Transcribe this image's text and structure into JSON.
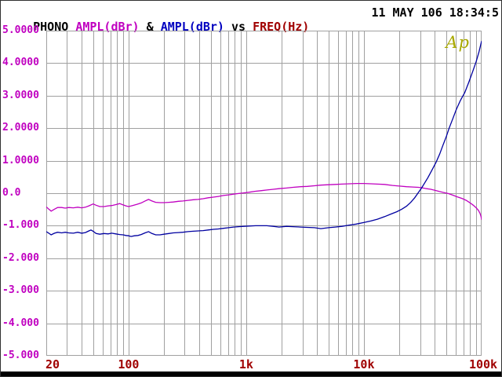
{
  "colors": {
    "background": "#ffffff",
    "grid": "#a0a0a0",
    "frame": "#a0a0a0",
    "series1": "#c000c0",
    "series2": "#0000a0",
    "y_label": "#c000c0",
    "x_label": "#a00000",
    "logo": "#a8a800",
    "black": "#000000"
  },
  "header": {
    "title_parts": [
      {
        "text": "PHONO ",
        "color": "#000000"
      },
      {
        "text": "AMPL(dBr)",
        "color": "#c000c0"
      },
      {
        "text": " & ",
        "color": "#000000"
      },
      {
        "text": "AMPL(dBr)",
        "color": "#0000c0"
      },
      {
        "text": " vs ",
        "color": "#000000"
      },
      {
        "text": "FREQ(Hz)",
        "color": "#a00000"
      }
    ],
    "timestamp": "11 MAY 106 18:34:5"
  },
  "chart_data": {
    "type": "line",
    "title": "PHONO AMPL(dBr) & AMPL(dBr) vs FREQ(Hz)",
    "xlabel": "FREQ(Hz)",
    "ylabel": "AMPL(dBr)",
    "grid": true,
    "legend_position": "none",
    "logo": "Ap",
    "x_axis": {
      "scale": "log",
      "min": 20,
      "max": 100000,
      "ticks": [
        {
          "label": "20",
          "value": 20,
          "dx": 8
        },
        {
          "label": "100",
          "value": 100,
          "dx": 0
        },
        {
          "label": "1k",
          "value": 1000,
          "dx": 0
        },
        {
          "label": "10k",
          "value": 10000,
          "dx": 0
        },
        {
          "label": "100k",
          "value": 100000,
          "dx": 2
        }
      ]
    },
    "y_axis": {
      "min": -5,
      "max": 5,
      "step": 1,
      "ticks": [
        {
          "label": "5.0000",
          "value": 5
        },
        {
          "label": "4.0000",
          "value": 4
        },
        {
          "label": "3.0000",
          "value": 3
        },
        {
          "label": "2.0000",
          "value": 2
        },
        {
          "label": "1.0000",
          "value": 1
        },
        {
          "label": "0.0",
          "value": 0
        },
        {
          "label": "-1.000",
          "value": -1
        },
        {
          "label": "-2.000",
          "value": -2
        },
        {
          "label": "-3.000",
          "value": -3
        },
        {
          "label": "-4.000",
          "value": -4
        },
        {
          "label": "-5.000",
          "value": -5
        }
      ]
    },
    "series": [
      {
        "name": "AMPL(dBr)",
        "color_key": "series1",
        "points": [
          [
            20,
            -0.42
          ],
          [
            21,
            -0.49
          ],
          [
            22,
            -0.55
          ],
          [
            23.5,
            -0.49
          ],
          [
            25,
            -0.44
          ],
          [
            27,
            -0.44
          ],
          [
            29,
            -0.46
          ],
          [
            31,
            -0.44
          ],
          [
            34,
            -0.45
          ],
          [
            37,
            -0.43
          ],
          [
            40,
            -0.45
          ],
          [
            43,
            -0.43
          ],
          [
            46,
            -0.39
          ],
          [
            50,
            -0.33
          ],
          [
            53,
            -0.37
          ],
          [
            57,
            -0.41
          ],
          [
            62,
            -0.41
          ],
          [
            67,
            -0.39
          ],
          [
            72,
            -0.38
          ],
          [
            78,
            -0.35
          ],
          [
            84,
            -0.32
          ],
          [
            90,
            -0.36
          ],
          [
            95,
            -0.39
          ],
          [
            100,
            -0.41
          ],
          [
            108,
            -0.38
          ],
          [
            118,
            -0.34
          ],
          [
            128,
            -0.3
          ],
          [
            138,
            -0.24
          ],
          [
            148,
            -0.19
          ],
          [
            158,
            -0.24
          ],
          [
            170,
            -0.28
          ],
          [
            185,
            -0.29
          ],
          [
            200,
            -0.29
          ],
          [
            220,
            -0.28
          ],
          [
            240,
            -0.27
          ],
          [
            265,
            -0.25
          ],
          [
            290,
            -0.24
          ],
          [
            320,
            -0.22
          ],
          [
            355,
            -0.2
          ],
          [
            390,
            -0.19
          ],
          [
            430,
            -0.17
          ],
          [
            475,
            -0.14
          ],
          [
            525,
            -0.12
          ],
          [
            580,
            -0.1
          ],
          [
            640,
            -0.07
          ],
          [
            710,
            -0.05
          ],
          [
            780,
            -0.03
          ],
          [
            860,
            -0.01
          ],
          [
            950,
            0.01
          ],
          [
            1050,
            0.03
          ],
          [
            1200,
            0.06
          ],
          [
            1350,
            0.08
          ],
          [
            1500,
            0.1
          ],
          [
            1700,
            0.12
          ],
          [
            1900,
            0.14
          ],
          [
            2200,
            0.16
          ],
          [
            2500,
            0.18
          ],
          [
            2900,
            0.2
          ],
          [
            3300,
            0.21
          ],
          [
            3800,
            0.23
          ],
          [
            4300,
            0.25
          ],
          [
            5000,
            0.26
          ],
          [
            5700,
            0.27
          ],
          [
            6500,
            0.28
          ],
          [
            7500,
            0.29
          ],
          [
            8600,
            0.3
          ],
          [
            10000,
            0.3
          ],
          [
            11500,
            0.29
          ],
          [
            13000,
            0.28
          ],
          [
            15000,
            0.27
          ],
          [
            17500,
            0.24
          ],
          [
            20000,
            0.22
          ],
          [
            23000,
            0.2
          ],
          [
            26000,
            0.19
          ],
          [
            29000,
            0.18
          ],
          [
            31000,
            0.17
          ],
          [
            34000,
            0.14
          ],
          [
            37000,
            0.12
          ],
          [
            40000,
            0.09
          ],
          [
            44000,
            0.05
          ],
          [
            48000,
            0.02
          ],
          [
            52000,
            -0.01
          ],
          [
            57000,
            -0.06
          ],
          [
            62000,
            -0.11
          ],
          [
            68000,
            -0.16
          ],
          [
            74000,
            -0.22
          ],
          [
            80000,
            -0.3
          ],
          [
            85000,
            -0.37
          ],
          [
            90000,
            -0.45
          ],
          [
            94000,
            -0.53
          ],
          [
            97000,
            -0.62
          ],
          [
            99000,
            -0.72
          ],
          [
            100000,
            -0.82
          ]
        ]
      },
      {
        "name": "AMPL(dBr)",
        "color_key": "series2",
        "points": [
          [
            20,
            -1.18
          ],
          [
            21,
            -1.23
          ],
          [
            22,
            -1.28
          ],
          [
            23.5,
            -1.23
          ],
          [
            25,
            -1.2
          ],
          [
            27,
            -1.22
          ],
          [
            29,
            -1.2
          ],
          [
            31,
            -1.22
          ],
          [
            34,
            -1.23
          ],
          [
            37,
            -1.2
          ],
          [
            40,
            -1.23
          ],
          [
            43,
            -1.21
          ],
          [
            46,
            -1.16
          ],
          [
            48,
            -1.13
          ],
          [
            50,
            -1.17
          ],
          [
            53,
            -1.24
          ],
          [
            57,
            -1.26
          ],
          [
            62,
            -1.24
          ],
          [
            67,
            -1.25
          ],
          [
            72,
            -1.23
          ],
          [
            78,
            -1.25
          ],
          [
            84,
            -1.27
          ],
          [
            90,
            -1.28
          ],
          [
            95,
            -1.3
          ],
          [
            100,
            -1.31
          ],
          [
            105,
            -1.33
          ],
          [
            112,
            -1.31
          ],
          [
            120,
            -1.3
          ],
          [
            128,
            -1.27
          ],
          [
            138,
            -1.22
          ],
          [
            148,
            -1.18
          ],
          [
            158,
            -1.24
          ],
          [
            170,
            -1.28
          ],
          [
            185,
            -1.28
          ],
          [
            200,
            -1.26
          ],
          [
            220,
            -1.24
          ],
          [
            240,
            -1.22
          ],
          [
            265,
            -1.21
          ],
          [
            290,
            -1.2
          ],
          [
            320,
            -1.18
          ],
          [
            355,
            -1.17
          ],
          [
            390,
            -1.16
          ],
          [
            430,
            -1.15
          ],
          [
            475,
            -1.13
          ],
          [
            525,
            -1.11
          ],
          [
            580,
            -1.1
          ],
          [
            640,
            -1.08
          ],
          [
            710,
            -1.06
          ],
          [
            780,
            -1.04
          ],
          [
            860,
            -1.03
          ],
          [
            950,
            -1.02
          ],
          [
            1050,
            -1.01
          ],
          [
            1200,
            -1.0
          ],
          [
            1350,
            -1.0
          ],
          [
            1500,
            -1.0
          ],
          [
            1700,
            -1.02
          ],
          [
            1900,
            -1.04
          ],
          [
            2200,
            -1.02
          ],
          [
            2500,
            -1.03
          ],
          [
            2900,
            -1.04
          ],
          [
            3300,
            -1.05
          ],
          [
            3800,
            -1.06
          ],
          [
            4300,
            -1.09
          ],
          [
            5000,
            -1.06
          ],
          [
            5700,
            -1.04
          ],
          [
            6500,
            -1.02
          ],
          [
            7500,
            -0.98
          ],
          [
            8600,
            -0.95
          ],
          [
            10000,
            -0.9
          ],
          [
            11500,
            -0.85
          ],
          [
            13000,
            -0.8
          ],
          [
            15000,
            -0.72
          ],
          [
            17000,
            -0.64
          ],
          [
            19000,
            -0.57
          ],
          [
            21000,
            -0.49
          ],
          [
            23000,
            -0.4
          ],
          [
            25000,
            -0.28
          ],
          [
            27000,
            -0.14
          ],
          [
            29000,
            0.02
          ],
          [
            31000,
            0.17
          ],
          [
            33000,
            0.33
          ],
          [
            35000,
            0.48
          ],
          [
            38000,
            0.72
          ],
          [
            41000,
            0.95
          ],
          [
            44000,
            1.2
          ],
          [
            47000,
            1.48
          ],
          [
            50000,
            1.73
          ],
          [
            53000,
            2.0
          ],
          [
            57000,
            2.3
          ],
          [
            61000,
            2.58
          ],
          [
            66000,
            2.85
          ],
          [
            72000,
            3.1
          ],
          [
            78000,
            3.42
          ],
          [
            84000,
            3.74
          ],
          [
            90000,
            4.05
          ],
          [
            95000,
            4.35
          ],
          [
            98000,
            4.55
          ],
          [
            100000,
            4.68
          ]
        ]
      }
    ]
  }
}
